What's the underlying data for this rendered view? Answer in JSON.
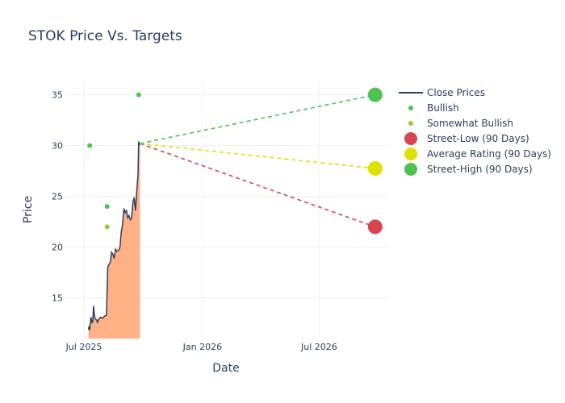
{
  "chart_data": {
    "type": "line",
    "title": "STOK Price Vs. Targets",
    "xlabel": "Date",
    "ylabel": "Price",
    "x_range": [
      "2025-06-01",
      "2026-10-15"
    ],
    "ylim": [
      11,
      36.4
    ],
    "x_ticks": [
      {
        "date": "2025-07-01",
        "label": "Jul 2025"
      },
      {
        "date": "2026-01-01",
        "label": "Jan 2026"
      },
      {
        "date": "2026-07-01",
        "label": "Jul 2026"
      }
    ],
    "y_ticks": [
      15,
      20,
      25,
      30,
      35
    ],
    "grid": true,
    "legend_position": "top-right",
    "colors": {
      "close": "#2a3f5f",
      "fill": "#ffb185",
      "bullish": "#4fc24f",
      "somewhat_bullish": "#8ed12a",
      "street_low": "#d64550",
      "average": "#e0e000",
      "street_high": "#4fc24f"
    },
    "series": [
      {
        "name": "Close Prices",
        "type": "line",
        "points": [
          [
            "2025-07-08",
            11.9
          ],
          [
            "2025-07-09",
            12.2
          ],
          [
            "2025-07-10",
            11.8
          ],
          [
            "2025-07-11",
            12.6
          ],
          [
            "2025-07-12",
            13.1
          ],
          [
            "2025-07-14",
            12.5
          ],
          [
            "2025-07-15",
            12.9
          ],
          [
            "2025-07-16",
            14.2
          ],
          [
            "2025-07-17",
            13.5
          ],
          [
            "2025-07-18",
            13.0
          ],
          [
            "2025-07-21",
            12.8
          ],
          [
            "2025-07-22",
            12.6
          ],
          [
            "2025-07-24",
            12.9
          ],
          [
            "2025-07-27",
            13.1
          ],
          [
            "2025-07-30",
            13.0
          ],
          [
            "2025-08-02",
            13.2
          ],
          [
            "2025-08-05",
            13.3
          ],
          [
            "2025-08-07",
            18.0
          ],
          [
            "2025-08-09",
            18.3
          ],
          [
            "2025-08-11",
            18.5
          ],
          [
            "2025-08-13",
            19.5
          ],
          [
            "2025-08-15",
            19.3
          ],
          [
            "2025-08-17",
            18.9
          ],
          [
            "2025-08-19",
            19.8
          ],
          [
            "2025-08-21",
            19.6
          ],
          [
            "2025-08-24",
            19.7
          ],
          [
            "2025-08-26",
            20.0
          ],
          [
            "2025-08-28",
            21.5
          ],
          [
            "2025-08-30",
            22.2
          ],
          [
            "2025-09-01",
            23.8
          ],
          [
            "2025-09-03",
            23.4
          ],
          [
            "2025-09-05",
            23.6
          ],
          [
            "2025-09-07",
            22.9
          ],
          [
            "2025-09-09",
            23.1
          ],
          [
            "2025-09-11",
            22.7
          ],
          [
            "2025-09-13",
            22.8
          ],
          [
            "2025-09-15",
            24.4
          ],
          [
            "2025-09-17",
            24.9
          ],
          [
            "2025-09-19",
            23.6
          ],
          [
            "2025-09-21",
            25.5
          ],
          [
            "2025-09-23",
            27.2
          ],
          [
            "2025-09-24",
            30.4
          ],
          [
            "2025-09-25",
            30.1
          ],
          [
            "2025-09-26",
            30.2
          ]
        ]
      },
      {
        "name": "Bullish",
        "type": "scatter",
        "points": [
          [
            "2025-07-10",
            30
          ],
          [
            "2025-09-24",
            35
          ],
          [
            "2025-08-06",
            24
          ]
        ]
      },
      {
        "name": "Somewhat Bullish",
        "type": "scatter",
        "points": [
          [
            "2025-08-06",
            22
          ]
        ]
      },
      {
        "name": "Street-Low (90 Days)",
        "type": "target",
        "from": [
          "2025-09-26",
          30.2
        ],
        "to": [
          "2026-09-26",
          22
        ]
      },
      {
        "name": "Average Rating (90 Days)",
        "type": "target",
        "from": [
          "2025-09-26",
          30.2
        ],
        "to": [
          "2026-09-26",
          27.75
        ]
      },
      {
        "name": "Street-High (90 Days)",
        "type": "target",
        "from": [
          "2025-09-26",
          30.2
        ],
        "to": [
          "2026-09-26",
          35
        ]
      }
    ]
  }
}
